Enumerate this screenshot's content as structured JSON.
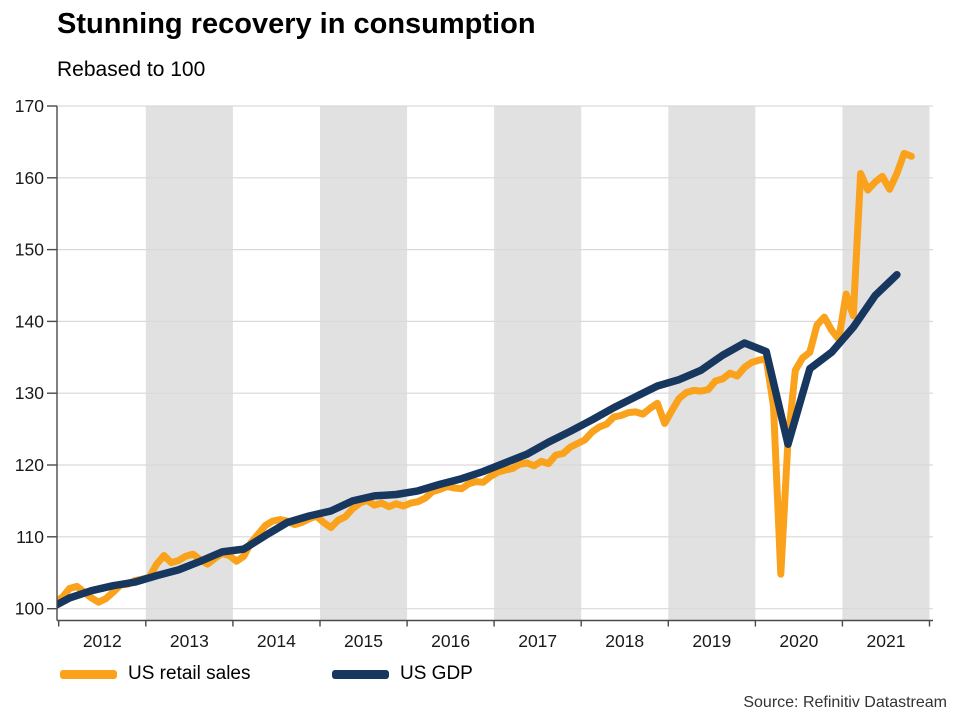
{
  "header": {
    "title": "Stunning recovery in consumption",
    "subtitle": "Rebased to 100"
  },
  "source": "Source: Refinitiv Datastream",
  "legend": [
    {
      "label": "US retail sales",
      "color": "#FAA21B"
    },
    {
      "label": "US GDP",
      "color": "#17375E"
    }
  ],
  "chart_data": {
    "type": "line",
    "title": "Stunning recovery in consumption",
    "subtitle": "Rebased to 100",
    "x_axis": {
      "domain": [
        2011.98,
        2022.04
      ],
      "year_labels": [
        "2012",
        "2013",
        "2014",
        "2015",
        "2016",
        "2017",
        "2018",
        "2019",
        "2020",
        "2021"
      ],
      "tick_years": [
        2012,
        2013,
        2014,
        2015,
        2016,
        2017,
        2018,
        2019,
        2020,
        2021,
        2022
      ],
      "band_years": [
        2013,
        2015,
        2017,
        2019,
        2021
      ],
      "band_color": "#E1E1E1"
    },
    "y_axis": {
      "range": [
        98.35,
        170
      ],
      "ticks": [
        100,
        110,
        120,
        130,
        140,
        150,
        160,
        170
      ],
      "grid_color": "#D9D9D9",
      "axis_color": "#4A4A4A"
    },
    "grid": "horizontal",
    "legend_position": "bottom",
    "series": [
      {
        "name": "US retail sales",
        "color": "#FAA21B",
        "stroke_width": 7,
        "frequency": "monthly",
        "start": 2011.9583,
        "step": 0.083333,
        "values": [
          100.9,
          101.6,
          102.8,
          103.1,
          102.3,
          101.5,
          100.9,
          101.4,
          102.3,
          103.3,
          103.4,
          103.9,
          104.1,
          104.4,
          106.2,
          107.4,
          106.4,
          106.7,
          107.3,
          107.6,
          106.8,
          106.2,
          107.0,
          107.7,
          107.4,
          106.6,
          107.3,
          109.2,
          110.4,
          111.6,
          112.2,
          112.4,
          112.2,
          111.7,
          112.0,
          112.5,
          112.9,
          112.0,
          111.3,
          112.3,
          112.8,
          113.9,
          114.7,
          115.1,
          114.4,
          114.7,
          114.2,
          114.6,
          114.3,
          114.7,
          114.9,
          115.4,
          116.3,
          116.6,
          117.0,
          116.8,
          116.7,
          117.4,
          117.7,
          117.6,
          118.4,
          119.0,
          119.3,
          119.5,
          120.1,
          120.3,
          119.9,
          120.5,
          120.2,
          121.4,
          121.6,
          122.5,
          123.0,
          123.5,
          124.6,
          125.3,
          125.7,
          126.7,
          126.9,
          127.3,
          127.4,
          127.1,
          127.9,
          128.6,
          125.8,
          127.6,
          129.3,
          130.1,
          130.4,
          130.3,
          130.5,
          131.7,
          132.0,
          132.8,
          132.4,
          133.6,
          134.3,
          134.6,
          134.8,
          128.2,
          104.8,
          123.4,
          133.2,
          134.9,
          135.7,
          139.5,
          140.6,
          138.8,
          137.5,
          143.8,
          140.8,
          160.6,
          158.3,
          159.4,
          160.2,
          158.4,
          160.6,
          163.4,
          163.0
        ]
      },
      {
        "name": "US GDP",
        "color": "#17375E",
        "stroke_width": 7.5,
        "frequency": "quarterly",
        "start": 2011.875,
        "step": 0.25,
        "values": [
          99.9,
          101.5,
          102.5,
          103.2,
          103.7,
          104.6,
          105.4,
          106.6,
          107.9,
          108.3,
          110.2,
          112.0,
          112.9,
          113.6,
          115.0,
          115.7,
          115.9,
          116.4,
          117.3,
          118.1,
          119.1,
          120.3,
          121.5,
          123.2,
          124.7,
          126.3,
          128.0,
          129.5,
          131.0,
          131.9,
          133.2,
          135.3,
          137.0,
          135.8,
          122.9,
          133.4,
          135.7,
          139.2,
          143.6,
          146.5
        ]
      }
    ]
  }
}
